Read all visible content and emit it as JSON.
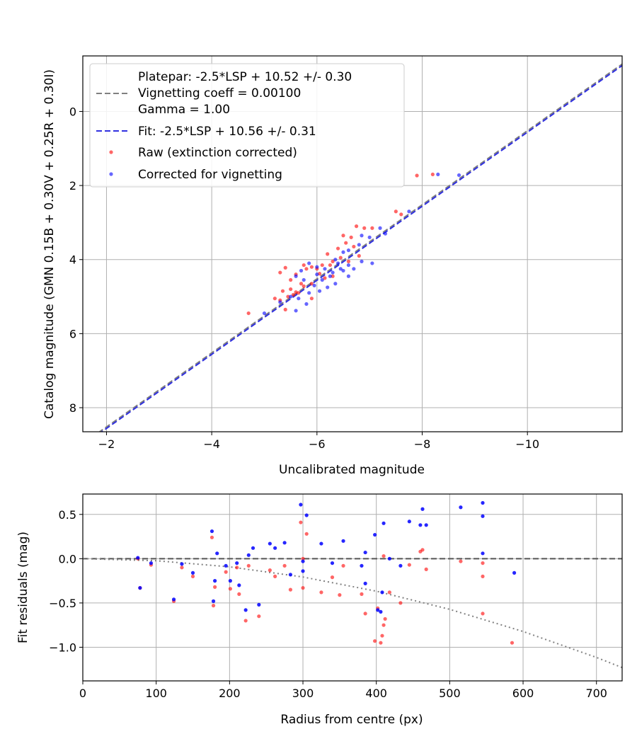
{
  "colors": {
    "raw": "#ff0000",
    "corrected": "#0000ff",
    "platepar": "#808080",
    "fit": "#3030e0",
    "grid": "#b0b0b0"
  },
  "chart_data": [
    {
      "type": "scatter",
      "xlabel": "Uncalibrated magnitude",
      "ylabel": "Catalog magnitude (GMN 0.15B + 0.30V + 0.25R + 0.30I)",
      "xlim": [
        -1.55,
        -11.8
      ],
      "ylim": [
        8.65,
        -1.5
      ],
      "x_ticks": [
        -2,
        -4,
        -6,
        -8,
        -10
      ],
      "x_tick_labels": [
        "−2",
        "−4",
        "−6",
        "−8",
        "−10"
      ],
      "y_ticks": [
        0,
        2,
        4,
        6,
        8
      ],
      "y_tick_labels": [
        "0",
        "2",
        "4",
        "6",
        "8"
      ],
      "legend": {
        "placement": "upper-left",
        "entries": [
          {
            "key": "platepar",
            "lines": [
              "Platepar: -2.5*LSP + 10.52 +/- 0.30",
              "Vignetting coeff = 0.00100",
              "Gamma = 1.00"
            ]
          },
          {
            "key": "fit",
            "lines": [
              "Fit: -2.5*LSP + 10.56 +/- 0.31"
            ]
          },
          {
            "key": "raw",
            "lines": [
              "Raw (extinction corrected)"
            ]
          },
          {
            "key": "corrected",
            "lines": [
              "Corrected for vignetting"
            ]
          }
        ]
      },
      "lines": [
        {
          "name": "Platepar",
          "slope": 1.0,
          "intercept": 10.52,
          "style": "dashed"
        },
        {
          "name": "Fit",
          "slope": 1.0,
          "intercept": 10.56,
          "style": "dashed"
        }
      ],
      "series": [
        {
          "name": "Raw (extinction corrected)",
          "points": [
            [
              -7.9,
              1.73
            ],
            [
              -8.2,
              1.7
            ],
            [
              -7.5,
              2.7
            ],
            [
              -7.6,
              2.78
            ],
            [
              -6.5,
              3.35
            ],
            [
              -6.65,
              3.4
            ],
            [
              -6.9,
              3.15
            ],
            [
              -7.05,
              3.15
            ],
            [
              -6.75,
              3.1
            ],
            [
              -6.55,
              3.55
            ],
            [
              -6.7,
              3.65
            ],
            [
              -6.4,
              3.7
            ],
            [
              -6.2,
              3.85
            ],
            [
              -6.45,
              3.95
            ],
            [
              -6.3,
              4.05
            ],
            [
              -6.25,
              4.15
            ],
            [
              -6.1,
              4.15
            ],
            [
              -6.0,
              4.25
            ],
            [
              -5.9,
              4.2
            ],
            [
              -5.75,
              4.15
            ],
            [
              -5.8,
              4.25
            ],
            [
              -5.6,
              4.4
            ],
            [
              -5.3,
              4.35
            ],
            [
              -5.4,
              4.22
            ],
            [
              -5.5,
              4.55
            ],
            [
              -5.7,
              4.65
            ],
            [
              -5.75,
              4.72
            ],
            [
              -5.9,
              4.65
            ],
            [
              -5.65,
              4.9
            ],
            [
              -5.5,
              4.8
            ],
            [
              -5.35,
              4.85
            ],
            [
              -5.55,
              4.95
            ],
            [
              -5.2,
              5.05
            ],
            [
              -5.3,
              5.1
            ],
            [
              -5.45,
              5.0
            ],
            [
              -5.6,
              4.88
            ],
            [
              -5.9,
              5.05
            ],
            [
              -5.4,
              5.35
            ],
            [
              -4.7,
              5.45
            ],
            [
              -6.3,
              4.45
            ],
            [
              -6.15,
              4.5
            ],
            [
              -6.05,
              4.38
            ],
            [
              -6.6,
              4.05
            ],
            [
              -6.8,
              3.9
            ]
          ]
        },
        {
          "name": "Corrected for vignetting",
          "points": [
            [
              -8.3,
              1.7
            ],
            [
              -8.7,
              1.72
            ],
            [
              -7.75,
              2.7
            ],
            [
              -7.2,
              3.15
            ],
            [
              -7.3,
              3.3
            ],
            [
              -7.0,
              3.4
            ],
            [
              -6.85,
              3.35
            ],
            [
              -6.8,
              3.6
            ],
            [
              -6.6,
              3.75
            ],
            [
              -6.5,
              3.8
            ],
            [
              -6.35,
              4.0
            ],
            [
              -6.4,
              4.1
            ],
            [
              -6.6,
              4.15
            ],
            [
              -7.05,
              4.1
            ],
            [
              -6.85,
              4.05
            ],
            [
              -6.5,
              4.3
            ],
            [
              -6.3,
              4.35
            ],
            [
              -6.15,
              4.25
            ],
            [
              -6.0,
              4.2
            ],
            [
              -5.85,
              4.1
            ],
            [
              -5.7,
              4.3
            ],
            [
              -5.6,
              4.45
            ],
            [
              -5.75,
              4.55
            ],
            [
              -5.95,
              4.7
            ],
            [
              -6.1,
              4.55
            ],
            [
              -6.2,
              4.75
            ],
            [
              -6.35,
              4.65
            ],
            [
              -6.6,
              4.45
            ],
            [
              -6.45,
              4.25
            ],
            [
              -6.05,
              4.85
            ],
            [
              -5.85,
              4.9
            ],
            [
              -5.65,
              5.05
            ],
            [
              -5.5,
              5.0
            ],
            [
              -5.3,
              5.15
            ],
            [
              -5.0,
              5.45
            ],
            [
              -5.6,
              5.38
            ],
            [
              -5.8,
              5.2
            ],
            [
              -6.0,
              4.4
            ],
            [
              -6.25,
              4.45
            ],
            [
              -6.7,
              4.25
            ]
          ]
        }
      ]
    },
    {
      "type": "scatter",
      "xlabel": "Radius from centre (px)",
      "ylabel": "Fit residuals (mag)",
      "xlim": [
        0,
        735
      ],
      "ylim": [
        -1.38,
        0.73
      ],
      "x_ticks": [
        0,
        100,
        200,
        300,
        400,
        500,
        600,
        700
      ],
      "x_tick_labels": [
        "0",
        "100",
        "200",
        "300",
        "400",
        "500",
        "600",
        "700"
      ],
      "y_ticks": [
        0.5,
        0.0,
        -0.5,
        -1.0
      ],
      "y_tick_labels": [
        "0.5",
        "0.0",
        "−0.5",
        "−1.0"
      ],
      "reference_line": {
        "y": 0.0,
        "style": "dashed"
      },
      "vignetting_curve": {
        "style": "dotted",
        "points": [
          [
            0,
            0.0
          ],
          [
            100,
            -0.023
          ],
          [
            200,
            -0.092
          ],
          [
            300,
            -0.207
          ],
          [
            400,
            -0.367
          ],
          [
            500,
            -0.572
          ],
          [
            600,
            -0.822
          ],
          [
            700,
            -1.115
          ],
          [
            735,
            -1.23
          ]
        ]
      },
      "series": [
        {
          "name": "Raw (extinction corrected)",
          "points": [
            [
              75,
              0.0
            ],
            [
              78,
              -0.33
            ],
            [
              93,
              -0.07
            ],
            [
              124,
              -0.48
            ],
            [
              135,
              -0.1
            ],
            [
              150,
              -0.2
            ],
            [
              176,
              0.24
            ],
            [
              178,
              -0.53
            ],
            [
              180,
              -0.32
            ],
            [
              195,
              -0.15
            ],
            [
              201,
              -0.34
            ],
            [
              210,
              -0.1
            ],
            [
              213,
              -0.4
            ],
            [
              222,
              -0.7
            ],
            [
              226,
              -0.08
            ],
            [
              240,
              -0.65
            ],
            [
              255,
              -0.13
            ],
            [
              262,
              -0.2
            ],
            [
              275,
              -0.08
            ],
            [
              283,
              -0.35
            ],
            [
              297,
              0.41
            ],
            [
              300,
              -0.33
            ],
            [
              305,
              0.28
            ],
            [
              325,
              -0.38
            ],
            [
              340,
              -0.21
            ],
            [
              350,
              -0.41
            ],
            [
              355,
              -0.08
            ],
            [
              380,
              -0.4
            ],
            [
              385,
              -0.62
            ],
            [
              398,
              -0.93
            ],
            [
              402,
              -0.56
            ],
            [
              406,
              -0.95
            ],
            [
              408,
              -0.87
            ],
            [
              410,
              -0.75
            ],
            [
              412,
              -0.68
            ],
            [
              418,
              -0.38
            ],
            [
              433,
              -0.5
            ],
            [
              445,
              -0.07
            ],
            [
              460,
              0.08
            ],
            [
              463,
              0.1
            ],
            [
              468,
              -0.12
            ],
            [
              515,
              -0.03
            ],
            [
              545,
              -0.05
            ],
            [
              545,
              -0.2
            ],
            [
              545,
              -0.62
            ],
            [
              585,
              -0.95
            ],
            [
              410,
              0.03
            ],
            [
              300,
              0.0
            ]
          ]
        },
        {
          "name": "Corrected for vignetting",
          "points": [
            [
              75,
              0.01
            ],
            [
              78,
              -0.33
            ],
            [
              93,
              -0.05
            ],
            [
              124,
              -0.46
            ],
            [
              135,
              -0.06
            ],
            [
              150,
              -0.16
            ],
            [
              176,
              0.31
            ],
            [
              178,
              -0.48
            ],
            [
              180,
              -0.25
            ],
            [
              183,
              0.06
            ],
            [
              195,
              -0.08
            ],
            [
              201,
              -0.25
            ],
            [
              210,
              -0.05
            ],
            [
              213,
              -0.3
            ],
            [
              222,
              -0.58
            ],
            [
              226,
              0.04
            ],
            [
              232,
              0.12
            ],
            [
              240,
              -0.52
            ],
            [
              255,
              0.17
            ],
            [
              262,
              0.12
            ],
            [
              275,
              0.18
            ],
            [
              283,
              -0.18
            ],
            [
              297,
              0.61
            ],
            [
              300,
              -0.14
            ],
            [
              305,
              0.49
            ],
            [
              325,
              0.17
            ],
            [
              340,
              -0.05
            ],
            [
              355,
              0.2
            ],
            [
              380,
              -0.08
            ],
            [
              385,
              -0.28
            ],
            [
              398,
              0.27
            ],
            [
              402,
              -0.58
            ],
            [
              406,
              -0.6
            ],
            [
              408,
              -0.38
            ],
            [
              410,
              0.4
            ],
            [
              418,
              0.0
            ],
            [
              433,
              -0.08
            ],
            [
              445,
              0.42
            ],
            [
              460,
              0.38
            ],
            [
              463,
              0.56
            ],
            [
              468,
              0.38
            ],
            [
              515,
              0.58
            ],
            [
              545,
              0.48
            ],
            [
              545,
              0.06
            ],
            [
              545,
              0.63
            ],
            [
              588,
              -0.16
            ],
            [
              300,
              -0.03
            ],
            [
              385,
              0.07
            ]
          ]
        }
      ]
    }
  ]
}
